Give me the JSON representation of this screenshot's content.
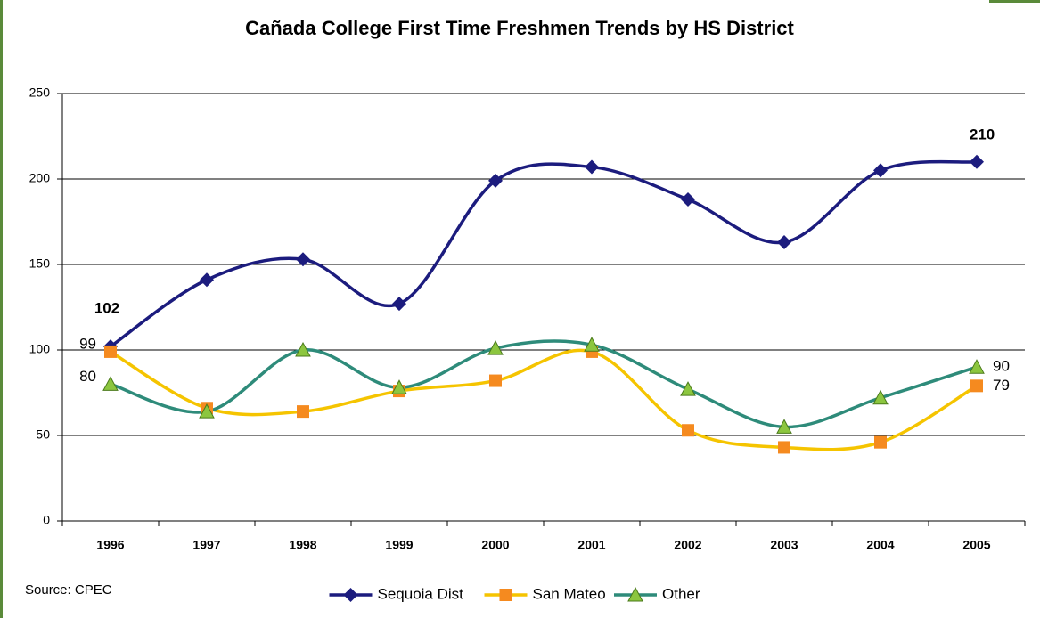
{
  "chart_data": {
    "type": "line",
    "title": "Cañada College  First Time Freshmen Trends by HS District",
    "source": "Source:  CPEC",
    "categories": [
      "1996",
      "1997",
      "1998",
      "1999",
      "2000",
      "2001",
      "2002",
      "2003",
      "2004",
      "2005"
    ],
    "series": [
      {
        "name": "Sequoia Dist",
        "color": "#1c1c7e",
        "marker": "diamond",
        "marker_color": "#1c1c7e",
        "values": [
          102,
          141,
          153,
          127,
          199,
          207,
          188,
          163,
          205,
          210
        ]
      },
      {
        "name": "San Mateo",
        "color": "#f5c400",
        "marker": "square",
        "marker_color": "#f58a1f",
        "values": [
          99,
          66,
          64,
          76,
          82,
          99,
          53,
          43,
          46,
          79
        ]
      },
      {
        "name": "Other",
        "color": "#2e8b7a",
        "marker": "triangle",
        "marker_color": "#8cc63f",
        "values": [
          80,
          64,
          100,
          78,
          101,
          103,
          77,
          55,
          72,
          90
        ]
      }
    ],
    "data_labels": "first_last",
    "smooth": true,
    "ylim": [
      0,
      250
    ],
    "yticks": [
      0,
      50,
      100,
      150,
      200,
      250
    ],
    "grid": true,
    "legend": "bottom"
  }
}
